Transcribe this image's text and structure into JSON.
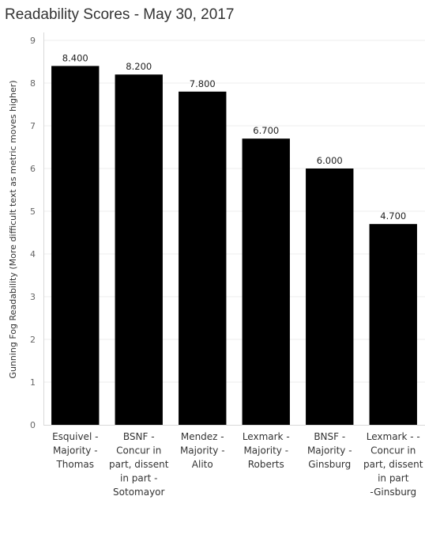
{
  "title": "Readability Scores - May 30, 2017",
  "colors": {
    "bar": "#000000",
    "grid": "#ececec",
    "axis": "#d9d9d9"
  },
  "chart_data": {
    "type": "bar",
    "title": "Readability Scores - May 30, 2017",
    "xlabel": "",
    "ylabel": "Gunning Fog Readability (More difficult text as metric moves higher)",
    "ylim": [
      0,
      9
    ],
    "yticks": [
      "0",
      "1",
      "2",
      "3",
      "4",
      "5",
      "6",
      "7",
      "8",
      "9"
    ],
    "grid": true,
    "categories": [
      [
        "Esquivel -",
        "Majority -",
        "Thomas"
      ],
      [
        "BSNF -",
        "Concur in",
        "part, dissent",
        "in part -",
        "Sotomayor"
      ],
      [
        "Mendez -",
        "Majority -",
        "Alito"
      ],
      [
        "Lexmark -",
        "Majority -",
        "Roberts"
      ],
      [
        "BNSF -",
        "Majority -",
        "Ginsburg"
      ],
      [
        "Lexmark - -",
        "Concur in",
        "part, dissent",
        "in part",
        "-Ginsburg"
      ]
    ],
    "values": [
      8.4,
      8.2,
      7.8,
      6.7,
      6.0,
      4.7
    ],
    "data_labels": [
      "8.400",
      "8.200",
      "7.800",
      "6.700",
      "6.000",
      "4.700"
    ]
  }
}
